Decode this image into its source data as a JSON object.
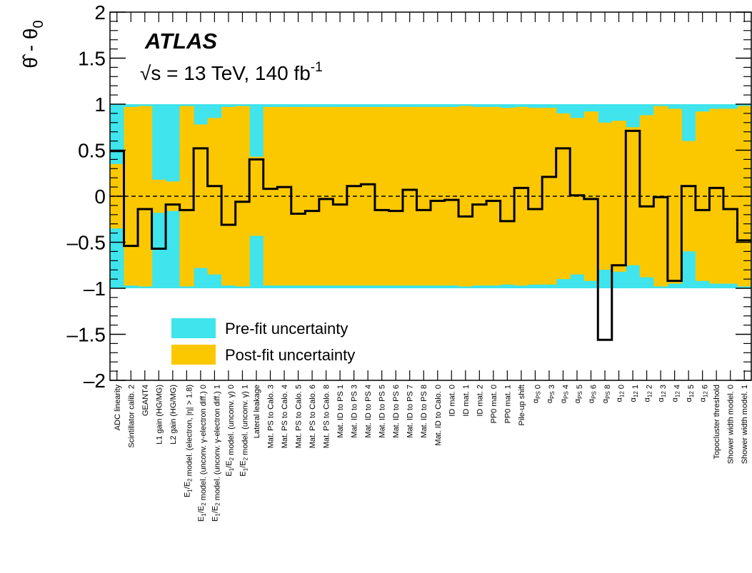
{
  "chart_data": {
    "type": "step",
    "experiment_label": "ATLAS",
    "energy_label": "√s = 13 TeV, 140 fb",
    "energy_label_superscript": "-1",
    "ylabel": "θ̂ - θ",
    "ylabel_subscript": "0",
    "ylim": [
      -2,
      2
    ],
    "yticks": [
      -2,
      -1.5,
      -1,
      -0.5,
      0,
      0.5,
      1,
      1.5,
      2
    ],
    "ytick_labels": [
      "–2",
      "–1.5",
      "–1",
      "–0.5",
      "0",
      "0.5",
      "1",
      "1.5",
      "2"
    ],
    "reference_line": 0,
    "categories": [
      "ADC linearity",
      "Scintillator calib. 2",
      "GEANT4",
      "L1 gain (HG/MG)",
      "L2 gain (HG/MG)",
      "E1/E2 model. (electron, |η| > 1.8)",
      "E1/E2 model. (unconv. γ-electron diff.) 0",
      "E1/E2 model. (unconv. γ-electron diff.) 1",
      "E1/E2 model. (unconv. γ) 0",
      "E1/E2 model. (unconv. γ) 1",
      "Lateral leakage",
      "Mat. PS to Calo. 3",
      "Mat. PS to Calo. 4",
      "Mat. PS to Calo. 5",
      "Mat. PS to Calo. 6",
      "Mat. PS to Calo. 8",
      "Mat. ID to PS 1",
      "Mat. ID to PS 3",
      "Mat. ID to PS 4",
      "Mat. ID to PS 5",
      "Mat. ID to PS 6",
      "Mat. ID to PS 7",
      "Mat. ID to PS 8",
      "Mat. ID to Calo. 0",
      "ID mat. 0",
      "ID mat. 1",
      "ID mat. 2",
      "PP0 mat. 0",
      "PP0 mat. 1",
      "Pile-up shift",
      "αPS 0",
      "αPS 3",
      "αPS 4",
      "αPS 5",
      "αPS 6",
      "αPS 8",
      "α12 0",
      "α12 1",
      "α12 2",
      "α12 3",
      "α12 4",
      "α12 5",
      "α12 6",
      "Topocluster threshold",
      "Shower width model. 0",
      "Shower width model. 1"
    ],
    "series": [
      {
        "name": "Pre-fit uncertainty",
        "color": "#3fe4ec",
        "values": [
          1,
          1,
          1,
          1,
          1,
          1,
          1,
          1,
          1,
          1,
          1,
          1,
          1,
          1,
          1,
          1,
          1,
          1,
          1,
          1,
          1,
          1,
          1,
          1,
          1,
          1,
          1,
          1,
          1,
          1,
          1,
          1,
          1,
          1,
          1,
          1,
          1,
          1,
          1,
          1,
          1,
          1,
          1,
          1,
          1,
          1
        ]
      },
      {
        "name": "Post-fit uncertainty",
        "color": "#fbc800",
        "values": [
          0.35,
          0.97,
          0.98,
          0.18,
          0.16,
          0.98,
          0.78,
          0.85,
          0.97,
          0.98,
          0.43,
          0.97,
          0.97,
          0.97,
          0.97,
          0.97,
          0.97,
          0.97,
          0.97,
          0.97,
          0.97,
          0.97,
          0.97,
          0.97,
          0.97,
          0.98,
          0.97,
          0.97,
          0.96,
          0.97,
          0.96,
          0.96,
          0.9,
          0.85,
          0.92,
          0.8,
          0.82,
          0.75,
          0.88,
          0.98,
          0.95,
          0.6,
          0.92,
          0.95,
          0.95,
          0.98
        ]
      }
    ],
    "pulls": [
      0.49,
      -0.54,
      -0.14,
      -0.57,
      -0.09,
      -0.15,
      0.52,
      0.11,
      -0.31,
      -0.06,
      0.4,
      0.08,
      0.1,
      -0.19,
      -0.16,
      -0.03,
      -0.09,
      0.11,
      0.13,
      -0.15,
      -0.16,
      0.07,
      -0.15,
      -0.05,
      -0.04,
      -0.22,
      -0.09,
      -0.05,
      -0.27,
      0.09,
      -0.14,
      0.21,
      0.52,
      0.01,
      -0.03,
      -1.56,
      -0.75,
      0.71,
      -0.11,
      -0.01,
      -0.92,
      0.11,
      -0.15,
      0.09,
      -0.14,
      -0.48
    ],
    "pull_series_name": "",
    "legend": {
      "placement": "bottom-left",
      "entries": [
        "Pre-fit uncertainty",
        "Post-fit uncertainty"
      ]
    },
    "grid": false
  }
}
